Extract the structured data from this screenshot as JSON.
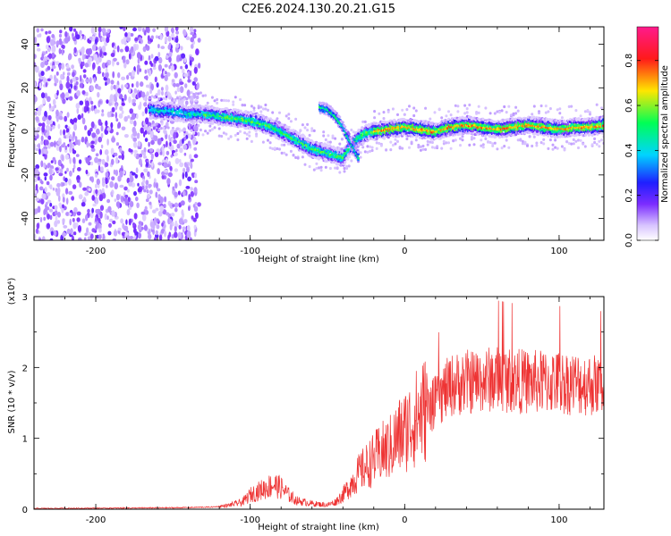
{
  "title": "C2E6.2024.130.20.21.G15",
  "colors": {
    "snr_line": "#ee3333",
    "colormap": [
      "#ffffff",
      "#d8c4ff",
      "#7b2cff",
      "#1f1fff",
      "#00d4ff",
      "#00ff55",
      "#ffe600",
      "#ff1a1a",
      "#ff1a8c"
    ]
  },
  "chart_data": [
    {
      "type": "heatmap",
      "xlabel": "Height of straight line (km)",
      "ylabel": "Frequency (Hz)",
      "xlim": [
        -240,
        129
      ],
      "ylim": [
        -50,
        48
      ],
      "xticks": [
        -200,
        -100,
        0,
        100
      ],
      "yticks": [
        -40,
        -20,
        0,
        20,
        40
      ],
      "colorbar": {
        "label": "Normalized spectral amplitude",
        "range": [
          0.0,
          0.95
        ],
        "ticks": [
          "0.0",
          "0.2",
          "0.4",
          "0.6",
          "0.8"
        ]
      },
      "ridge": {
        "x": [
          -165,
          -150,
          -140,
          -130,
          -120,
          -110,
          -100,
          -90,
          -80,
          -70,
          -60,
          -50,
          -45,
          -40,
          -35,
          -30,
          -25,
          -20,
          -10,
          0,
          10,
          20,
          30,
          40,
          50,
          60,
          70,
          80,
          90,
          100,
          110,
          120,
          129
        ],
        "y": [
          10,
          9,
          8,
          8,
          7,
          6,
          5,
          3,
          0,
          -4,
          -8,
          -10,
          -11,
          -12,
          -7,
          -3,
          -1,
          0,
          1,
          2,
          1,
          0,
          2,
          3,
          2,
          1,
          2,
          3,
          2,
          1,
          2,
          2,
          3
        ]
      },
      "branch": {
        "x": [
          -55,
          -50,
          -45,
          -40,
          -35,
          -30
        ],
        "y": [
          11,
          10,
          7,
          2,
          -5,
          -12
        ]
      },
      "noise_region_x": [
        -240,
        -133
      ]
    },
    {
      "type": "line",
      "xlabel": "Height of straight line (km)",
      "ylabel": "SNR (10 * v/v)",
      "scale_label": "(x10⁴)",
      "xlim": [
        -240,
        129
      ],
      "ylim": [
        0,
        3
      ],
      "xticks": [
        -200,
        -100,
        0,
        100
      ],
      "yticks": [
        0,
        1,
        2,
        3
      ],
      "profile": {
        "x": [
          -240,
          -150,
          -125,
          -115,
          -105,
          -100,
          -95,
          -90,
          -85,
          -80,
          -75,
          -70,
          -60,
          -50,
          -45,
          -40,
          -35,
          -30,
          -25,
          -20,
          -15,
          -10,
          -5,
          0,
          10,
          20,
          25,
          30,
          40,
          60,
          80,
          100,
          129
        ],
        "y": [
          0.01,
          0.02,
          0.03,
          0.05,
          0.1,
          0.2,
          0.25,
          0.3,
          0.35,
          0.3,
          0.2,
          0.12,
          0.08,
          0.06,
          0.1,
          0.2,
          0.35,
          0.5,
          0.6,
          0.7,
          0.8,
          0.85,
          1.0,
          1.1,
          1.35,
          1.55,
          1.7,
          1.8,
          1.85,
          1.9,
          1.85,
          1.85,
          1.8
        ]
      }
    }
  ]
}
